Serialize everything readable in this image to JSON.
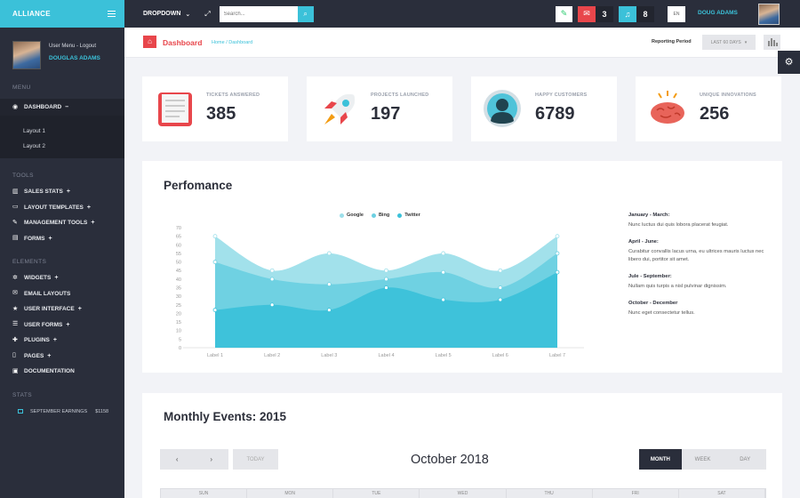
{
  "sidebar": {
    "brand": "ALLIANCE",
    "user_links": "User Menu - Logout",
    "user_name": "DOUGLAS ADAMS",
    "menu_title": "MENU",
    "dashboard": "DASHBOARD",
    "sub_items": [
      "Layout 1",
      "Layout 2"
    ],
    "tools_title": "TOOLS",
    "tools": [
      "SALES STATS",
      "LAYOUT TEMPLATES",
      "MANAGEMENT TOOLS",
      "FORMS"
    ],
    "elements_title": "ELEMENTS",
    "elements": [
      "WIDGETS",
      "EMAIL LAYOUTS",
      "USER INTERFACE",
      "USER FORMS",
      "PLUGINS",
      "PAGES",
      "DOCUMENTATION"
    ],
    "stats_title": "STATS",
    "stat_label": "SEPTEMBER EARNINGS",
    "stat_value": "$1158"
  },
  "topbar": {
    "dropdown": "DROPDOWN",
    "search_placeholder": "Search...",
    "mail_count": "3",
    "notif_count": "8",
    "lang": "EN",
    "user": "DOUG ADAMS"
  },
  "crumb": {
    "title": "Dashboard",
    "path": "Home / Dashboard",
    "reporting_label": "Reporting Period",
    "reporting_value": "LAST 60 DAYS"
  },
  "stats": [
    {
      "label": "TICKETS ANSWERED",
      "value": "385"
    },
    {
      "label": "PROJECTS LAUNCHED",
      "value": "197"
    },
    {
      "label": "HAPPY CUSTOMERS",
      "value": "6789"
    },
    {
      "label": "UNIQUE INNOVATIONS",
      "value": "256"
    }
  ],
  "performance": {
    "title": "Perfomance",
    "events": [
      {
        "title": "January - March:",
        "text": "Nunc luctus dui quis lobora placerat feugiat."
      },
      {
        "title": "April - June:",
        "text": "Curabitur convallis lacus urna, eu ultrices mauris luctus nec libero dui, portitor sit amet."
      },
      {
        "title": "Jule - September:",
        "text": "Nullam quis turpis a nisl pulvinar dignissim."
      },
      {
        "title": "October - December",
        "text": "Nunc eget consectetur tellus."
      }
    ]
  },
  "chart_data": {
    "type": "area",
    "categories": [
      "Label 1",
      "Label 2",
      "Label 3",
      "Label 4",
      "Label 5",
      "Label 6",
      "Label 7"
    ],
    "yticks": [
      0,
      5,
      10,
      15,
      20,
      25,
      30,
      35,
      40,
      45,
      50,
      55,
      60,
      65,
      70
    ],
    "ylim": [
      0,
      70
    ],
    "series": [
      {
        "name": "Google",
        "color": "#9ddfea",
        "values": [
          65,
          45,
          55,
          45,
          55,
          45,
          65
        ]
      },
      {
        "name": "Bing",
        "color": "#6dd0e2",
        "values": [
          50,
          40,
          37,
          40,
          44,
          35,
          55
        ]
      },
      {
        "name": "Twitter",
        "color": "#3bc1d9",
        "values": [
          22,
          25,
          22,
          35,
          28,
          28,
          44
        ]
      }
    ]
  },
  "monthly": {
    "title": "Monthly Events: 2015",
    "today": "TODAY",
    "month_title": "October 2018",
    "views": [
      "MONTH",
      "WEEK",
      "DAY"
    ],
    "days": [
      "SUN",
      "MON",
      "TUE",
      "WED",
      "THU",
      "FRI",
      "SAT"
    ]
  },
  "colors": {
    "accent": "#3bc1d9",
    "dark": "#2a2e3b",
    "red": "#e8464b"
  }
}
